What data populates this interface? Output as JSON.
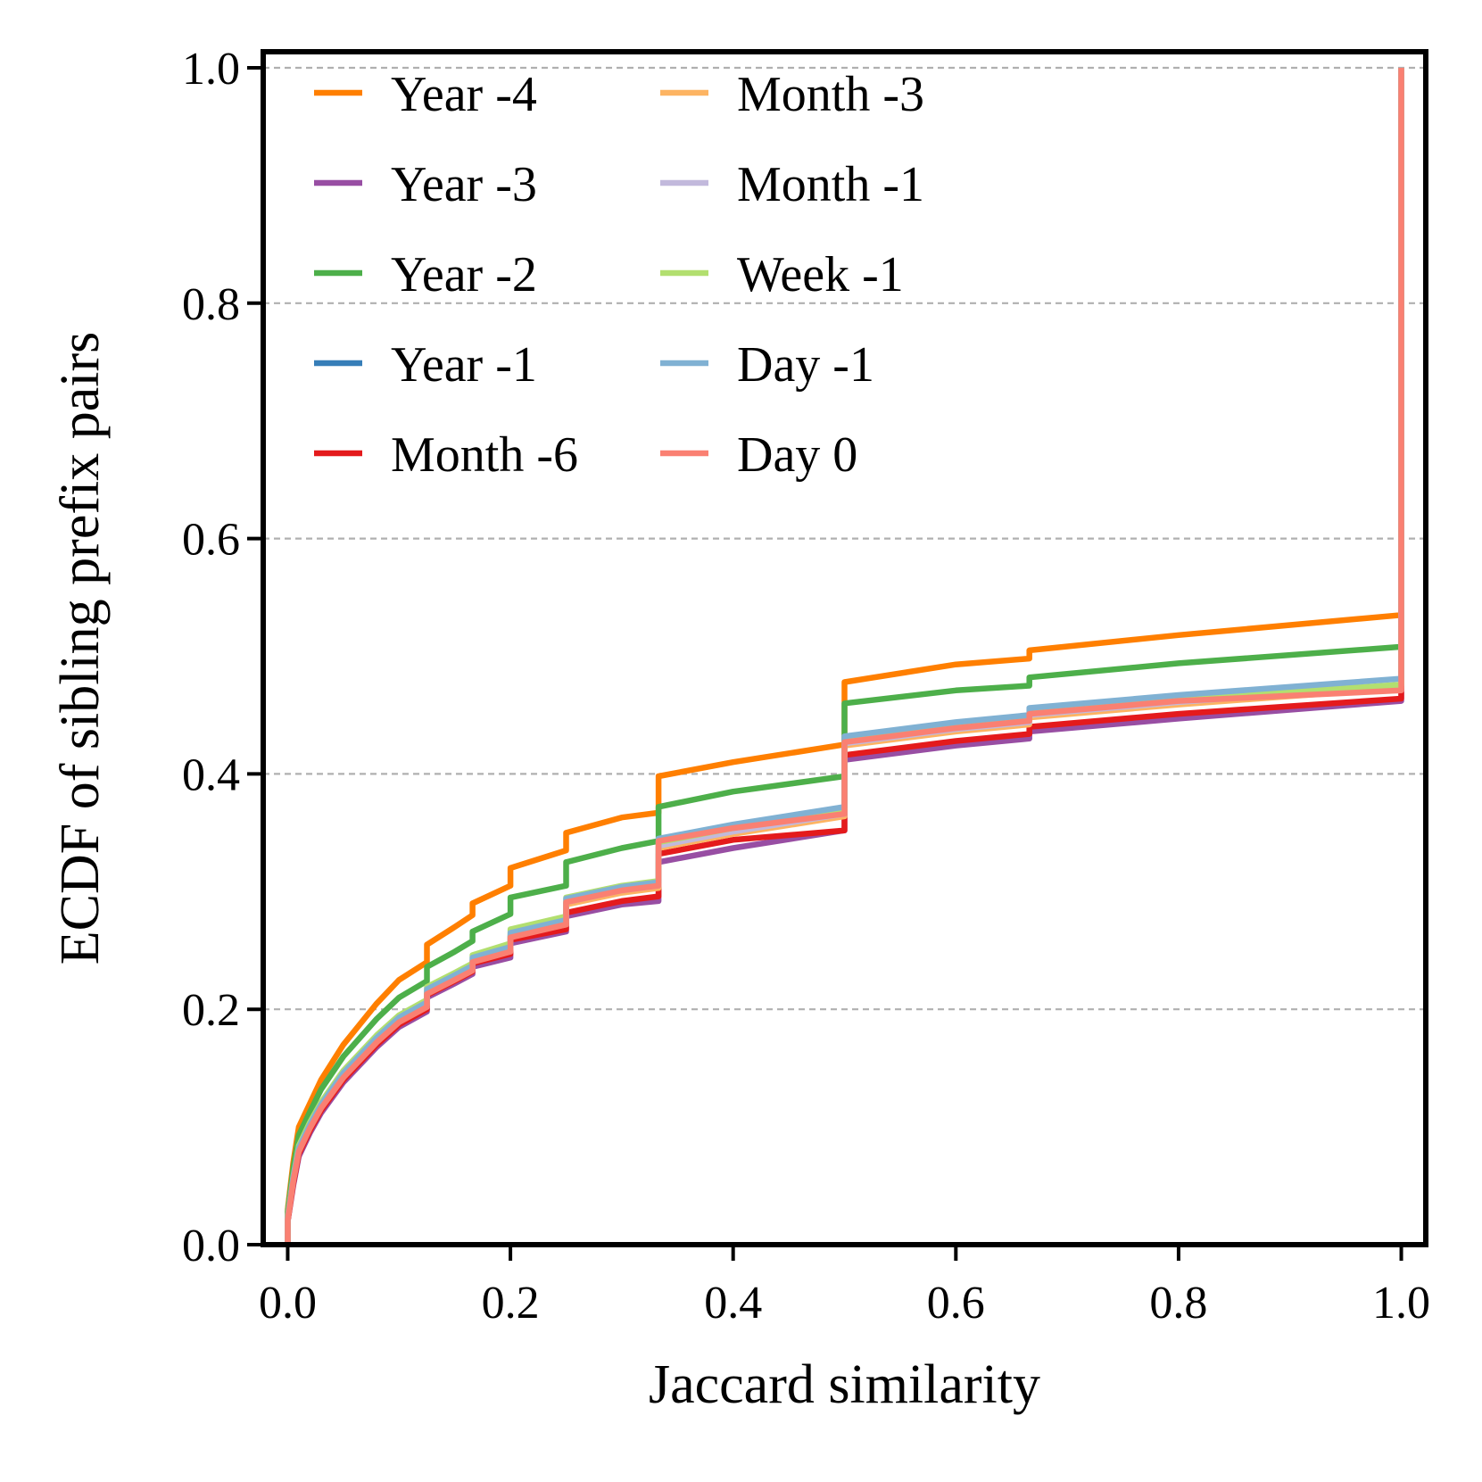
{
  "chart_data": {
    "type": "line",
    "title": "",
    "xlabel": "Jaccard similarity",
    "ylabel": "ECDF of sibling prefix pairs",
    "xlim": [
      -0.022,
      1.022
    ],
    "ylim": [
      0.0,
      1.0
    ],
    "xticks": [
      0.0,
      0.2,
      0.4,
      0.6,
      0.8,
      1.0
    ],
    "xtick_labels": [
      "0.0",
      "0.2",
      "0.4",
      "0.6",
      "0.8",
      "1.0"
    ],
    "yticks": [
      0.0,
      0.2,
      0.4,
      0.6,
      0.8,
      1.0
    ],
    "ytick_labels": [
      "0.0",
      "0.2",
      "0.4",
      "0.6",
      "0.8",
      "1.0"
    ],
    "grid": "horizontal-dashed",
    "legend_position": "top-left",
    "legend_columns": 2,
    "series": [
      {
        "name": "Year -4",
        "color": "#ff7f00",
        "x": [
          0.0,
          0.0,
          0.005,
          0.01,
          0.02,
          0.03,
          0.05,
          0.08,
          0.1,
          0.125,
          0.125,
          0.15,
          0.166,
          0.166,
          0.2,
          0.2,
          0.25,
          0.25,
          0.3,
          0.333,
          0.333,
          0.4,
          0.5,
          0.5,
          0.6,
          0.666,
          0.666,
          0.8,
          1.0,
          1.0
        ],
        "y": [
          0.0,
          0.03,
          0.07,
          0.1,
          0.12,
          0.14,
          0.17,
          0.205,
          0.225,
          0.24,
          0.255,
          0.27,
          0.28,
          0.29,
          0.305,
          0.32,
          0.335,
          0.35,
          0.363,
          0.367,
          0.398,
          0.41,
          0.425,
          0.478,
          0.493,
          0.498,
          0.505,
          0.518,
          0.535,
          1.0
        ]
      },
      {
        "name": "Year -3",
        "color": "#984ea3",
        "x": [
          0.0,
          0.0,
          0.005,
          0.01,
          0.02,
          0.03,
          0.05,
          0.08,
          0.1,
          0.125,
          0.125,
          0.15,
          0.166,
          0.166,
          0.2,
          0.2,
          0.25,
          0.25,
          0.3,
          0.333,
          0.333,
          0.4,
          0.5,
          0.5,
          0.6,
          0.666,
          0.666,
          0.8,
          1.0,
          1.0
        ],
        "y": [
          0.0,
          0.02,
          0.05,
          0.075,
          0.095,
          0.112,
          0.138,
          0.168,
          0.185,
          0.198,
          0.21,
          0.222,
          0.23,
          0.236,
          0.244,
          0.256,
          0.266,
          0.279,
          0.289,
          0.292,
          0.325,
          0.337,
          0.352,
          0.412,
          0.424,
          0.43,
          0.436,
          0.447,
          0.462,
          1.0
        ]
      },
      {
        "name": "Year -2",
        "color": "#4daf4a",
        "x": [
          0.0,
          0.0,
          0.005,
          0.01,
          0.02,
          0.03,
          0.05,
          0.08,
          0.1,
          0.125,
          0.125,
          0.15,
          0.166,
          0.166,
          0.2,
          0.2,
          0.25,
          0.25,
          0.3,
          0.333,
          0.333,
          0.4,
          0.5,
          0.5,
          0.6,
          0.666,
          0.666,
          0.8,
          1.0,
          1.0
        ],
        "y": [
          0.0,
          0.028,
          0.065,
          0.093,
          0.113,
          0.132,
          0.16,
          0.192,
          0.21,
          0.224,
          0.236,
          0.249,
          0.258,
          0.266,
          0.281,
          0.295,
          0.305,
          0.325,
          0.337,
          0.343,
          0.372,
          0.385,
          0.398,
          0.46,
          0.471,
          0.475,
          0.482,
          0.494,
          0.508,
          1.0
        ]
      },
      {
        "name": "Year -1",
        "color": "#377eb8",
        "x": [
          0.0,
          0.0,
          0.005,
          0.01,
          0.02,
          0.03,
          0.05,
          0.08,
          0.1,
          0.125,
          0.125,
          0.15,
          0.166,
          0.166,
          0.2,
          0.2,
          0.25,
          0.25,
          0.3,
          0.333,
          0.333,
          0.4,
          0.5,
          0.5,
          0.6,
          0.666,
          0.666,
          0.8,
          1.0,
          1.0
        ],
        "y": [
          0.0,
          0.022,
          0.055,
          0.08,
          0.1,
          0.117,
          0.143,
          0.173,
          0.19,
          0.203,
          0.214,
          0.226,
          0.234,
          0.241,
          0.25,
          0.262,
          0.273,
          0.29,
          0.3,
          0.304,
          0.338,
          0.35,
          0.365,
          0.425,
          0.437,
          0.443,
          0.449,
          0.46,
          0.474,
          1.0
        ]
      },
      {
        "name": "Month -6",
        "color": "#e41a1c",
        "x": [
          0.0,
          0.0,
          0.005,
          0.01,
          0.02,
          0.03,
          0.05,
          0.08,
          0.1,
          0.125,
          0.125,
          0.15,
          0.166,
          0.166,
          0.2,
          0.2,
          0.25,
          0.25,
          0.3,
          0.333,
          0.333,
          0.4,
          0.5,
          0.5,
          0.6,
          0.666,
          0.666,
          0.8,
          1.0,
          1.0
        ],
        "y": [
          0.0,
          0.02,
          0.052,
          0.077,
          0.097,
          0.114,
          0.14,
          0.17,
          0.187,
          0.2,
          0.212,
          0.224,
          0.232,
          0.239,
          0.247,
          0.259,
          0.268,
          0.282,
          0.292,
          0.296,
          0.332,
          0.344,
          0.352,
          0.416,
          0.428,
          0.434,
          0.44,
          0.451,
          0.464,
          1.0
        ]
      },
      {
        "name": "Month -3",
        "color": "#fdb462",
        "x": [
          0.0,
          0.0,
          0.005,
          0.01,
          0.02,
          0.03,
          0.05,
          0.08,
          0.1,
          0.125,
          0.125,
          0.15,
          0.166,
          0.166,
          0.2,
          0.2,
          0.25,
          0.25,
          0.3,
          0.333,
          0.333,
          0.4,
          0.5,
          0.5,
          0.6,
          0.666,
          0.666,
          0.8,
          1.0,
          1.0
        ],
        "y": [
          0.0,
          0.022,
          0.055,
          0.08,
          0.1,
          0.117,
          0.143,
          0.173,
          0.19,
          0.203,
          0.214,
          0.226,
          0.234,
          0.241,
          0.25,
          0.262,
          0.272,
          0.289,
          0.299,
          0.303,
          0.337,
          0.349,
          0.364,
          0.424,
          0.436,
          0.442,
          0.448,
          0.459,
          0.473,
          1.0
        ]
      },
      {
        "name": "Month -1",
        "color": "#c2b9dc",
        "x": [
          0.0,
          0.0,
          0.005,
          0.01,
          0.02,
          0.03,
          0.05,
          0.08,
          0.1,
          0.125,
          0.125,
          0.15,
          0.166,
          0.166,
          0.2,
          0.2,
          0.25,
          0.25,
          0.3,
          0.333,
          0.333,
          0.4,
          0.5,
          0.5,
          0.6,
          0.666,
          0.666,
          0.8,
          1.0,
          1.0
        ],
        "y": [
          0.0,
          0.022,
          0.056,
          0.081,
          0.101,
          0.118,
          0.144,
          0.174,
          0.191,
          0.204,
          0.215,
          0.227,
          0.235,
          0.242,
          0.251,
          0.263,
          0.274,
          0.291,
          0.301,
          0.305,
          0.339,
          0.351,
          0.366,
          0.426,
          0.438,
          0.444,
          0.45,
          0.461,
          0.475,
          1.0
        ]
      },
      {
        "name": "Week -1",
        "color": "#b2df6f",
        "x": [
          0.0,
          0.0,
          0.005,
          0.01,
          0.02,
          0.03,
          0.05,
          0.08,
          0.1,
          0.125,
          0.125,
          0.15,
          0.166,
          0.166,
          0.2,
          0.2,
          0.25,
          0.25,
          0.3,
          0.333,
          0.333,
          0.4,
          0.5,
          0.5,
          0.6,
          0.666,
          0.666,
          0.8,
          1.0,
          1.0
        ],
        "y": [
          0.0,
          0.024,
          0.058,
          0.084,
          0.104,
          0.121,
          0.148,
          0.178,
          0.195,
          0.208,
          0.219,
          0.231,
          0.239,
          0.246,
          0.256,
          0.268,
          0.279,
          0.295,
          0.305,
          0.309,
          0.342,
          0.354,
          0.369,
          0.428,
          0.44,
          0.446,
          0.452,
          0.463,
          0.476,
          1.0
        ]
      },
      {
        "name": "Day -1",
        "color": "#80b1d3",
        "x": [
          0.0,
          0.0,
          0.005,
          0.01,
          0.02,
          0.03,
          0.05,
          0.08,
          0.1,
          0.125,
          0.125,
          0.15,
          0.166,
          0.166,
          0.2,
          0.2,
          0.25,
          0.25,
          0.3,
          0.333,
          0.333,
          0.4,
          0.5,
          0.5,
          0.6,
          0.666,
          0.666,
          0.8,
          1.0,
          1.0
        ],
        "y": [
          0.0,
          0.023,
          0.057,
          0.082,
          0.102,
          0.119,
          0.146,
          0.176,
          0.193,
          0.206,
          0.217,
          0.229,
          0.237,
          0.244,
          0.253,
          0.265,
          0.276,
          0.294,
          0.304,
          0.308,
          0.345,
          0.357,
          0.372,
          0.432,
          0.444,
          0.45,
          0.456,
          0.467,
          0.481,
          1.0
        ]
      },
      {
        "name": "Day 0",
        "color": "#fa8072",
        "x": [
          0.0,
          0.0,
          0.005,
          0.01,
          0.02,
          0.03,
          0.05,
          0.08,
          0.1,
          0.125,
          0.125,
          0.15,
          0.166,
          0.166,
          0.2,
          0.2,
          0.25,
          0.25,
          0.3,
          0.333,
          0.333,
          0.4,
          0.5,
          0.5,
          0.6,
          0.666,
          0.666,
          0.8,
          1.0,
          1.0
        ],
        "y": [
          0.0,
          0.021,
          0.054,
          0.079,
          0.099,
          0.116,
          0.142,
          0.172,
          0.189,
          0.202,
          0.213,
          0.225,
          0.233,
          0.24,
          0.249,
          0.261,
          0.272,
          0.291,
          0.301,
          0.305,
          0.343,
          0.354,
          0.366,
          0.427,
          0.439,
          0.445,
          0.451,
          0.462,
          0.471,
          1.0
        ]
      }
    ]
  }
}
